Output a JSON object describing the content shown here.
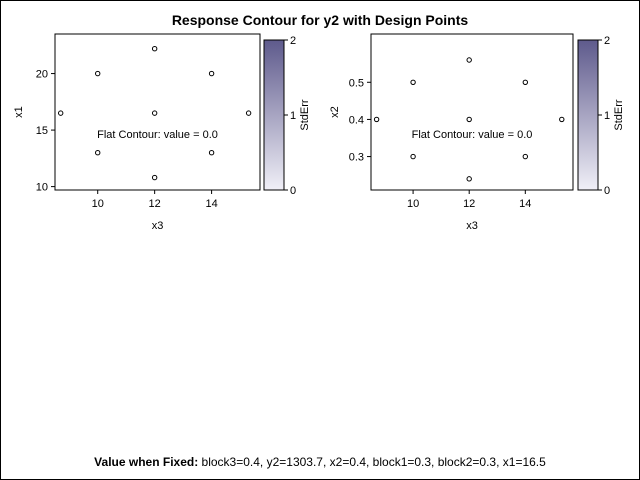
{
  "title": "Response Contour for y2 with Design Points",
  "footnote": {
    "label": "Value when Fixed:",
    "text": "block3=0.4, y2=1303.7, x2=0.4, block1=0.3, block2=0.3, x1=16.5"
  },
  "colors": {
    "gradient_low": "#f0eff7",
    "gradient_high": "#5e5a8c",
    "axis": "#000000",
    "background": "#ffffff"
  },
  "chart_data": [
    {
      "type": "scatter",
      "xlabel": "x3",
      "ylabel": "x1",
      "xlim": [
        8.5,
        15.7
      ],
      "ylim": [
        9.7,
        23.5
      ],
      "xticks": [
        "10",
        "12",
        "14"
      ],
      "yticks": [
        "10",
        "15",
        "20"
      ],
      "annotation": "Flat Contour: value = 0.0",
      "points": [
        {
          "x": 12,
          "y": 22.2
        },
        {
          "x": 10,
          "y": 20
        },
        {
          "x": 14,
          "y": 20
        },
        {
          "x": 8.7,
          "y": 16.5
        },
        {
          "x": 12,
          "y": 16.5
        },
        {
          "x": 15.3,
          "y": 16.5
        },
        {
          "x": 10,
          "y": 13
        },
        {
          "x": 14,
          "y": 13
        },
        {
          "x": 12,
          "y": 10.8
        }
      ],
      "colorbar": {
        "label": "StdErr",
        "min": 0,
        "max": 2,
        "ticks": [
          "0",
          "1",
          "2"
        ]
      }
    },
    {
      "type": "scatter",
      "xlabel": "x3",
      "ylabel": "x2",
      "xlim": [
        8.5,
        15.7
      ],
      "ylim": [
        0.21,
        0.63
      ],
      "xticks": [
        "10",
        "12",
        "14"
      ],
      "yticks": [
        "0.3",
        "0.4",
        "0.5"
      ],
      "annotation": "Flat Contour: value = 0.0",
      "points": [
        {
          "x": 12,
          "y": 0.56
        },
        {
          "x": 10,
          "y": 0.5
        },
        {
          "x": 14,
          "y": 0.5
        },
        {
          "x": 8.7,
          "y": 0.4
        },
        {
          "x": 12,
          "y": 0.4
        },
        {
          "x": 15.3,
          "y": 0.4
        },
        {
          "x": 10,
          "y": 0.3
        },
        {
          "x": 14,
          "y": 0.3
        },
        {
          "x": 12,
          "y": 0.24
        }
      ],
      "colorbar": {
        "label": "StdErr",
        "min": 0,
        "max": 2,
        "ticks": [
          "0",
          "1",
          "2"
        ]
      }
    }
  ]
}
